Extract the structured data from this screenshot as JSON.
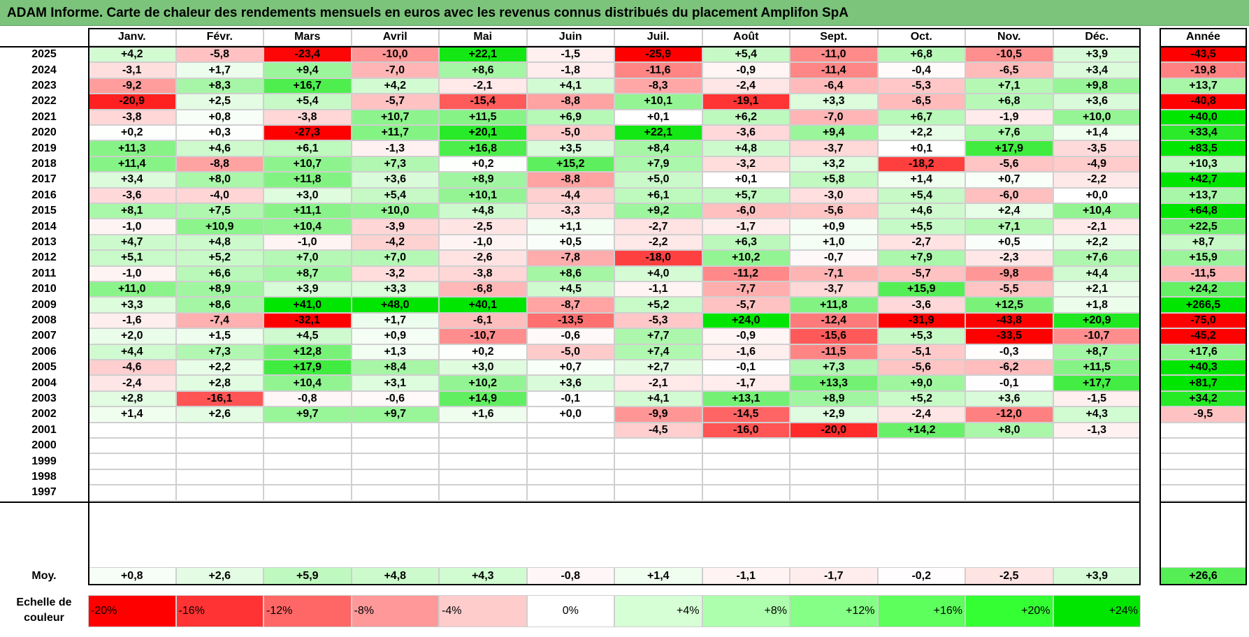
{
  "title": "ADAM Informe. Carte de chaleur des rendements mensuels en euros avec les revenus connus distribués du placement Amplifon SpA",
  "chart_data": {
    "type": "heatmap",
    "title": "ADAM Informe. Carte de chaleur des rendements mensuels en euros avec les revenus connus distribués du placement Amplifon SpA",
    "columns": [
      "Janv.",
      "Févr.",
      "Mars",
      "Avril",
      "Mai",
      "Juin",
      "Juil.",
      "Août",
      "Sept.",
      "Oct.",
      "Nov.",
      "Déc."
    ],
    "year_column": "Année",
    "rows": [
      {
        "year": "2025",
        "values": [
          4.2,
          -5.8,
          -23.4,
          -10.0,
          22.1,
          -1.5,
          -25.9,
          5.4,
          -11.0,
          6.8,
          -10.5,
          3.9
        ],
        "annual": -43.5
      },
      {
        "year": "2024",
        "values": [
          -3.1,
          1.7,
          9.4,
          -7.0,
          8.6,
          -1.8,
          -11.6,
          -0.9,
          -11.4,
          -0.4,
          -6.5,
          3.4
        ],
        "annual": -19.8
      },
      {
        "year": "2023",
        "values": [
          -9.2,
          8.3,
          16.7,
          4.2,
          -2.1,
          4.1,
          -8.3,
          -2.4,
          -6.4,
          -5.3,
          7.1,
          9.8
        ],
        "annual": 13.7
      },
      {
        "year": "2022",
        "values": [
          -20.9,
          2.5,
          5.4,
          -5.7,
          -15.4,
          -8.8,
          10.1,
          -19.1,
          3.3,
          -6.5,
          6.8,
          3.6
        ],
        "annual": -40.8
      },
      {
        "year": "2021",
        "values": [
          -3.8,
          0.8,
          -3.8,
          10.7,
          11.5,
          6.9,
          0.1,
          6.2,
          -7.0,
          6.7,
          -1.9,
          10.0
        ],
        "annual": 40.0
      },
      {
        "year": "2020",
        "values": [
          0.2,
          0.3,
          -27.3,
          11.7,
          20.1,
          -5.0,
          22.1,
          -3.6,
          9.4,
          2.2,
          7.6,
          1.4
        ],
        "annual": 33.4
      },
      {
        "year": "2019",
        "values": [
          11.3,
          4.6,
          6.1,
          -1.3,
          16.8,
          3.5,
          8.4,
          4.8,
          -3.7,
          0.1,
          17.9,
          -3.5
        ],
        "annual": 83.5
      },
      {
        "year": "2018",
        "values": [
          11.4,
          -8.8,
          10.7,
          7.3,
          0.2,
          15.2,
          7.9,
          -3.2,
          3.2,
          -18.2,
          -5.6,
          -4.9
        ],
        "annual": 10.3
      },
      {
        "year": "2017",
        "values": [
          3.4,
          8.0,
          11.8,
          3.6,
          8.9,
          -8.8,
          5.0,
          0.1,
          5.8,
          1.4,
          0.7,
          -2.2
        ],
        "annual": 42.7
      },
      {
        "year": "2016",
        "values": [
          -3.6,
          -4.0,
          3.0,
          5.4,
          10.1,
          -4.4,
          6.1,
          5.7,
          -3.0,
          5.4,
          -6.0,
          0.0
        ],
        "annual": 13.7
      },
      {
        "year": "2015",
        "values": [
          8.1,
          7.5,
          11.1,
          10.0,
          4.8,
          -3.3,
          9.2,
          -6.0,
          -5.6,
          4.6,
          2.4,
          10.4
        ],
        "annual": 64.8
      },
      {
        "year": "2014",
        "values": [
          -1.0,
          10.9,
          10.4,
          -3.9,
          -2.5,
          1.1,
          -2.7,
          -1.7,
          0.9,
          5.5,
          7.1,
          -2.1
        ],
        "annual": 22.5
      },
      {
        "year": "2013",
        "values": [
          4.7,
          4.8,
          -1.0,
          -4.2,
          -1.0,
          0.5,
          -2.2,
          6.3,
          1.0,
          -2.7,
          0.5,
          2.2
        ],
        "annual": 8.7
      },
      {
        "year": "2012",
        "values": [
          5.1,
          5.2,
          7.0,
          7.0,
          -2.6,
          -7.8,
          -18.0,
          10.2,
          -0.7,
          7.9,
          -2.3,
          7.6
        ],
        "annual": 15.9
      },
      {
        "year": "2011",
        "values": [
          -1.0,
          6.6,
          8.7,
          -3.2,
          -3.8,
          8.6,
          4.0,
          -11.2,
          -7.1,
          -5.7,
          -9.8,
          4.4
        ],
        "annual": -11.5
      },
      {
        "year": "2010",
        "values": [
          11.0,
          8.9,
          3.9,
          3.3,
          -6.8,
          4.5,
          -1.1,
          -7.7,
          -3.7,
          15.9,
          -5.5,
          2.1
        ],
        "annual": 24.2
      },
      {
        "year": "2009",
        "values": [
          3.3,
          8.6,
          41.0,
          48.0,
          40.1,
          -8.7,
          5.2,
          -5.7,
          11.8,
          -3.6,
          12.5,
          1.8
        ],
        "annual": 266.5
      },
      {
        "year": "2008",
        "values": [
          -1.6,
          -7.4,
          -32.1,
          1.7,
          -6.1,
          -13.5,
          -5.3,
          24.0,
          -12.4,
          -31.9,
          -43.8,
          20.9
        ],
        "annual": -75.0
      },
      {
        "year": "2007",
        "values": [
          2.0,
          1.5,
          4.5,
          0.9,
          -10.7,
          -0.6,
          7.7,
          -0.9,
          -15.6,
          5.3,
          -33.5,
          -10.7
        ],
        "annual": -45.2
      },
      {
        "year": "2006",
        "values": [
          4.4,
          7.3,
          12.8,
          1.3,
          0.2,
          -5.0,
          7.4,
          -1.6,
          -11.5,
          -5.1,
          -0.3,
          8.7
        ],
        "annual": 17.6
      },
      {
        "year": "2005",
        "values": [
          -4.6,
          2.2,
          17.9,
          8.4,
          3.0,
          0.7,
          2.7,
          -0.1,
          7.3,
          -5.6,
          -6.2,
          11.5
        ],
        "annual": 40.3
      },
      {
        "year": "2004",
        "values": [
          -2.4,
          2.8,
          10.4,
          3.1,
          10.2,
          3.6,
          -2.1,
          -1.7,
          13.3,
          9.0,
          -0.1,
          17.7
        ],
        "annual": 81.7
      },
      {
        "year": "2003",
        "values": [
          2.8,
          -16.1,
          -0.8,
          -0.6,
          14.9,
          -0.1,
          4.1,
          13.1,
          8.9,
          5.2,
          3.6,
          -1.5
        ],
        "annual": 34.2
      },
      {
        "year": "2002",
        "values": [
          1.4,
          2.6,
          9.7,
          9.7,
          1.6,
          0.0,
          -9.9,
          -14.5,
          2.9,
          -2.4,
          -12.0,
          4.3
        ],
        "annual": -9.5
      },
      {
        "year": "2001",
        "values": [
          null,
          null,
          null,
          null,
          null,
          null,
          -4.5,
          -16.0,
          -20.0,
          14.2,
          8.0,
          -1.3
        ],
        "annual": null
      },
      {
        "year": "2000",
        "values": [
          null,
          null,
          null,
          null,
          null,
          null,
          null,
          null,
          null,
          null,
          null,
          null
        ],
        "annual": null
      },
      {
        "year": "1999",
        "values": [
          null,
          null,
          null,
          null,
          null,
          null,
          null,
          null,
          null,
          null,
          null,
          null
        ],
        "annual": null
      },
      {
        "year": "1998",
        "values": [
          null,
          null,
          null,
          null,
          null,
          null,
          null,
          null,
          null,
          null,
          null,
          null
        ],
        "annual": null
      },
      {
        "year": "1997",
        "values": [
          null,
          null,
          null,
          null,
          null,
          null,
          null,
          null,
          null,
          null,
          null,
          null
        ],
        "annual": null
      }
    ],
    "average": {
      "label": "Moy.",
      "values": [
        0.8,
        2.6,
        5.9,
        4.8,
        4.3,
        -0.8,
        1.4,
        -1.1,
        -1.7,
        -0.2,
        -2.5,
        3.9
      ],
      "annual": 26.6
    },
    "color_scale": {
      "label": "Echelle de couleur",
      "stops": [
        {
          "label": "-20%",
          "value": -20,
          "color": "#ff0000"
        },
        {
          "label": "-16%",
          "value": -16,
          "color": "#ff3333"
        },
        {
          "label": "-12%",
          "value": -12,
          "color": "#ff6666"
        },
        {
          "label": "-8%",
          "value": -8,
          "color": "#ff9999"
        },
        {
          "label": "-4%",
          "value": -4,
          "color": "#ffcccc"
        },
        {
          "label": "0%",
          "value": 0,
          "color": "#ffffff"
        },
        {
          "label": "+4%",
          "value": 4,
          "color": "#d6ffd6"
        },
        {
          "label": "+8%",
          "value": 8,
          "color": "#adffad"
        },
        {
          "label": "+12%",
          "value": 12,
          "color": "#85ff85"
        },
        {
          "label": "+16%",
          "value": 16,
          "color": "#5cff5c"
        },
        {
          "label": "+20%",
          "value": 20,
          "color": "#33ff33"
        },
        {
          "label": "+24%",
          "value": 24,
          "color": "#00e600"
        }
      ]
    },
    "colors": {
      "title_bar": "#7cc47c",
      "negative_max": "#ff0000",
      "positive_max": "#00e600",
      "neutral": "#ffffff"
    }
  }
}
